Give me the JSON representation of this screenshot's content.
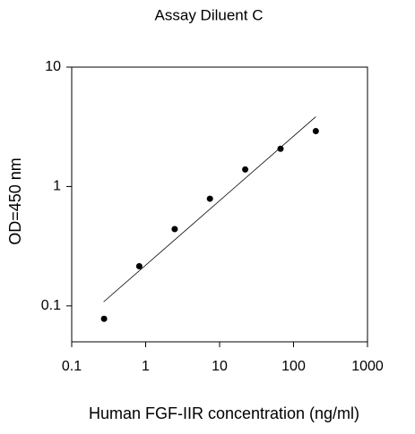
{
  "chart_data": {
    "type": "scatter",
    "title": "Assay Diluent C",
    "x_label": "Human FGF-IIR concentration (ng/ml)",
    "y_label": "OD=450 nm",
    "x": [
      0.274,
      0.82,
      2.47,
      7.4,
      22.2,
      66.7,
      200
    ],
    "values": [
      0.078,
      0.215,
      0.44,
      0.79,
      1.39,
      2.07,
      2.91
    ],
    "color": "#000000",
    "fit_line": {
      "x": [
        0.27,
        200
      ],
      "values": [
        0.108,
        3.84
      ]
    },
    "x_log": true,
    "y_log": true,
    "xlim": [
      0.1,
      1000
    ],
    "ylim": [
      0.05,
      10
    ],
    "xticks": [
      0.1,
      1,
      10,
      100,
      1000
    ],
    "yticks": [
      0.1,
      1,
      10
    ]
  }
}
